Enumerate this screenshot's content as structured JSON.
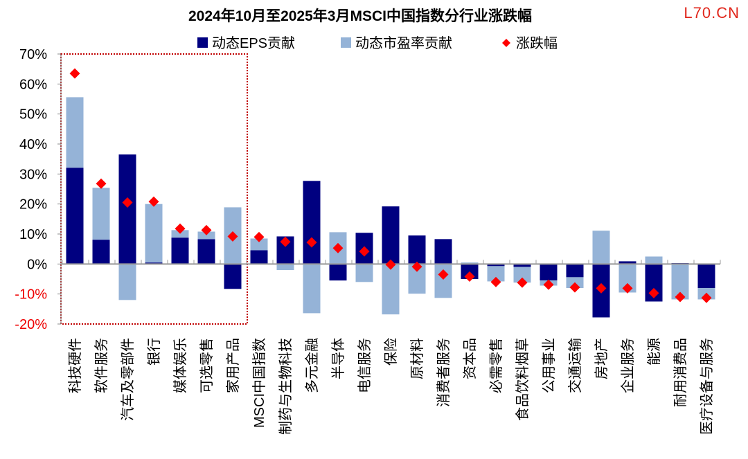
{
  "watermark": "L70.CN",
  "chart_data": {
    "type": "bar",
    "stacked": true,
    "title": "2024年10月至2025年3月MSCI中国指数分行业涨跌幅",
    "ylim": [
      -20,
      70
    ],
    "yticks": [
      -20,
      -10,
      0,
      10,
      20,
      30,
      40,
      50,
      60,
      70
    ],
    "ytick_format": "percent",
    "grid": false,
    "legend_placement": "top",
    "highlight_box": {
      "from": "科技硬件",
      "to": "家用产品",
      "color": "#C00000",
      "style": "dotted"
    },
    "categories": [
      "科技硬件",
      "软件服务",
      "汽车及零部件",
      "银行",
      "媒体娱乐",
      "可选零售",
      "家用产品",
      "MSCI中国指数",
      "制药与生物科技",
      "多元金融",
      "半导体",
      "电信服务",
      "保险",
      "原材料",
      "消费者服务",
      "资本品",
      "必需零售",
      "食品饮料烟草",
      "公用事业",
      "交通运输",
      "房地产",
      "企业服务",
      "能源",
      "耐用消费品",
      "医疗设备与服务"
    ],
    "series": [
      {
        "name": "动态EPS贡献",
        "kind": "bar",
        "color": "#000080",
        "values": [
          32.1,
          8.1,
          36.5,
          0.5,
          8.8,
          8.3,
          -8.3,
          4.6,
          9.2,
          27.7,
          -5.5,
          10.4,
          19.2,
          9.5,
          8.3,
          -5.0,
          -0.7,
          -1.0,
          -5.5,
          -4.4,
          -17.8,
          0.9,
          -12.5,
          0.3,
          -8.0
        ]
      },
      {
        "name": "动态市盈率贡献",
        "kind": "bar",
        "color": "#95B3D7",
        "values": [
          23.5,
          17.3,
          -12.0,
          19.5,
          2.5,
          2.5,
          18.9,
          3.9,
          -2.0,
          -16.4,
          10.6,
          -6.0,
          -16.8,
          -9.9,
          -11.3,
          0.5,
          -5.1,
          -5.2,
          -1.7,
          -3.6,
          11.1,
          -9.5,
          2.5,
          -11.8,
          -3.8
        ]
      },
      {
        "name": "涨跌幅",
        "kind": "marker",
        "marker": "diamond",
        "color": "#FF0000",
        "values": [
          63.5,
          26.8,
          20.5,
          20.8,
          11.8,
          11.3,
          9.2,
          9.0,
          7.4,
          7.2,
          5.3,
          4.2,
          -0.2,
          -0.9,
          -3.5,
          -4.2,
          -6.0,
          -6.2,
          -6.9,
          -7.8,
          -8.1,
          -8.1,
          -9.7,
          -11.0,
          -11.3
        ]
      }
    ]
  }
}
